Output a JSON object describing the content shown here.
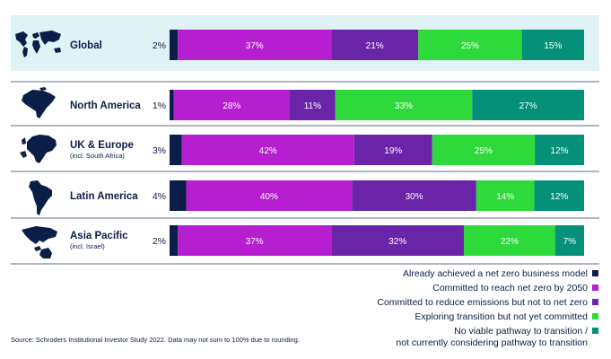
{
  "chart_data": {
    "type": "bar",
    "orientation": "horizontal",
    "stacked": true,
    "categories": [
      {
        "name": "Global",
        "sub": ""
      },
      {
        "name": "North America",
        "sub": ""
      },
      {
        "name": "UK & Europe",
        "sub": "(incl. South Africa)"
      },
      {
        "name": "Latin America",
        "sub": ""
      },
      {
        "name": "Asia Pacific",
        "sub": "(incl. Israel)"
      }
    ],
    "series": [
      {
        "name": "Already achieved a net zero business model",
        "color": "#0b1e47",
        "values": [
          2,
          1,
          3,
          4,
          2
        ],
        "labels": [
          "2%",
          "1%",
          "3%",
          "4%",
          "2%"
        ]
      },
      {
        "name": "Committed to reach net zero by 2050",
        "color": "#b51fd0",
        "values": [
          37,
          28,
          42,
          40,
          37
        ],
        "labels": [
          "37%",
          "28%",
          "42%",
          "40%",
          "37%"
        ]
      },
      {
        "name": "Committed to reduce emissions but not to net zero",
        "color": "#6a24a8",
        "values": [
          21,
          11,
          19,
          30,
          32
        ],
        "labels": [
          "21%",
          "11%",
          "19%",
          "30%",
          "32%"
        ]
      },
      {
        "name": "Exploring transition but not yet committed",
        "color": "#2ed93c",
        "values": [
          25,
          33,
          25,
          14,
          22
        ],
        "labels": [
          "25%",
          "33%",
          "25%",
          "14%",
          "22%"
        ]
      },
      {
        "name": "No viable pathway to transition /\nnot currently considering pathway to transition",
        "color": "#05907a",
        "values": [
          15,
          27,
          12,
          12,
          7
        ],
        "labels": [
          "15%",
          "27%",
          "12%",
          "12%",
          "7%"
        ]
      }
    ],
    "highlighted_category": "Global",
    "highlight_color": "#dff3f6",
    "legend_position": "bottom-right"
  },
  "source_note": "Source: Schroders Institutional Investor Study 2022. Data may not sum to 100% due to rounding.",
  "map_icons": [
    "world-map-icon",
    "north-america-map-icon",
    "europe-map-icon",
    "latin-america-map-icon",
    "asia-pacific-map-icon"
  ]
}
